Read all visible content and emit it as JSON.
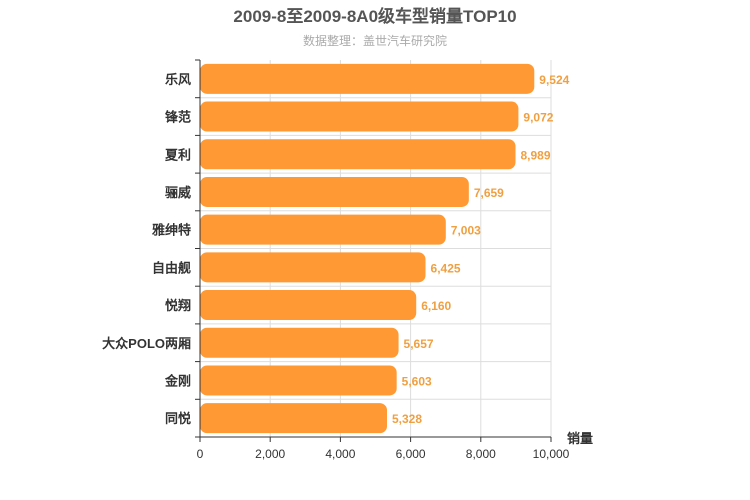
{
  "colors": {
    "bar": "#ff9933",
    "data_label": "#f0a040",
    "grid": "#dddddd",
    "axis": "#333333"
  },
  "chart_data": {
    "type": "bar",
    "orientation": "horizontal",
    "title": "2009-8至2009-8A0级车型销量TOP10",
    "subtitle": "数据整理：盖世汽车研究院",
    "xlabel": "销量",
    "ylabel": "",
    "categories": [
      "乐风",
      "锋范",
      "夏利",
      "骊威",
      "雅绅特",
      "自由舰",
      "悦翔",
      "大众POLO两厢",
      "金刚",
      "同悦"
    ],
    "series": [
      {
        "values": [
          9524,
          9072,
          8989,
          7659,
          7003,
          6425,
          6160,
          5657,
          5603,
          5328
        ]
      }
    ],
    "data_labels": [
      "9,524",
      "9,072",
      "8,989",
      "7,659",
      "7,003",
      "6,425",
      "6,160",
      "5,657",
      "5,603",
      "5,328"
    ],
    "xlim": [
      0,
      10000
    ],
    "xticks": [
      0,
      2000,
      4000,
      6000,
      8000,
      10000
    ],
    "xtick_labels": [
      "0",
      "2,000",
      "4,000",
      "6,000",
      "8,000",
      "10,000"
    ],
    "grid": true,
    "legend": "none"
  }
}
